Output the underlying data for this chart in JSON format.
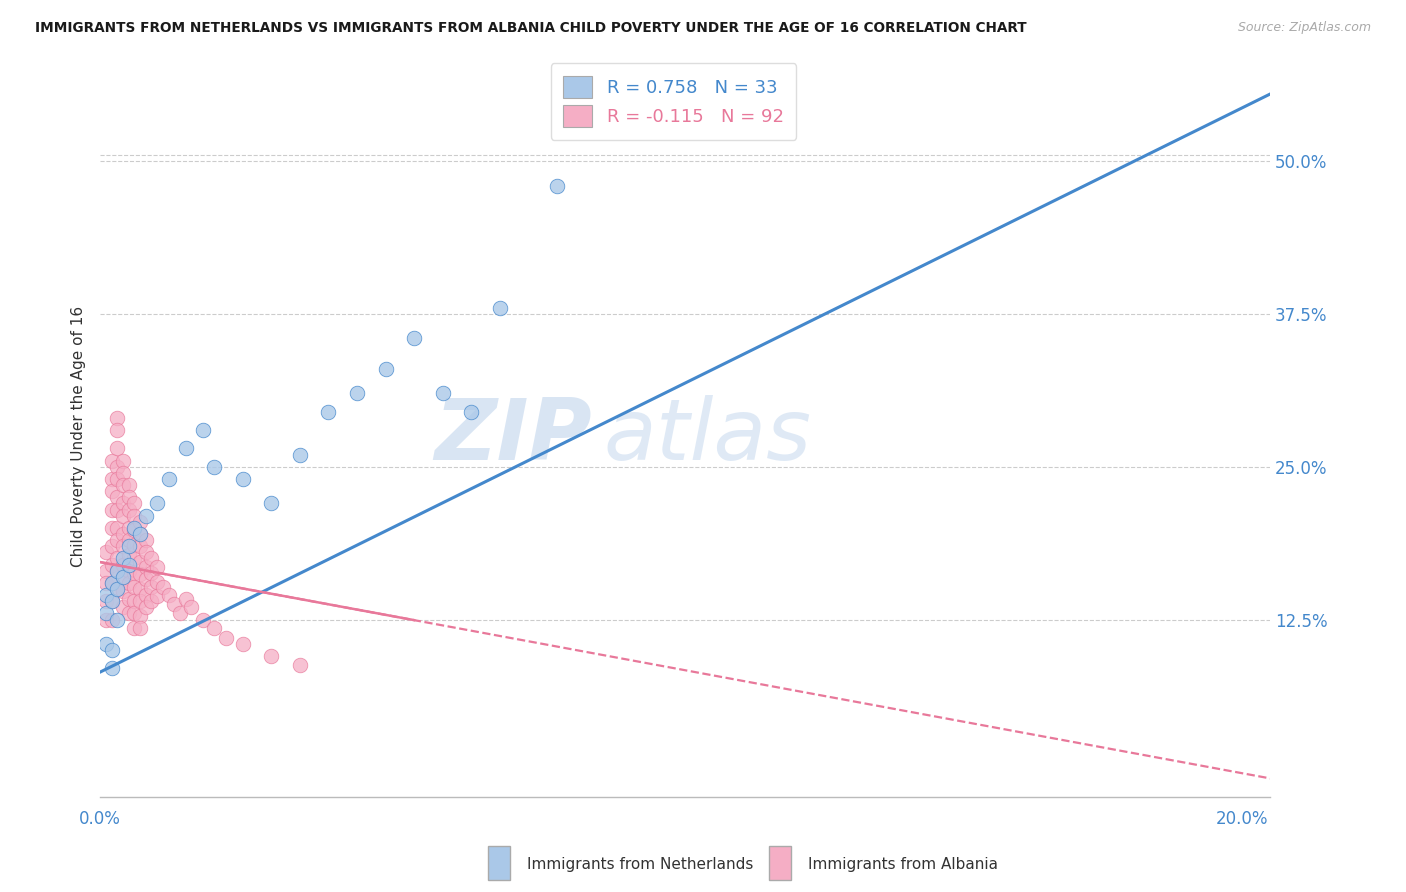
{
  "title": "IMMIGRANTS FROM NETHERLANDS VS IMMIGRANTS FROM ALBANIA CHILD POVERTY UNDER THE AGE OF 16 CORRELATION CHART",
  "source": "Source: ZipAtlas.com",
  "ylabel": "Child Poverty Under the Age of 16",
  "legend_label_1": "Immigrants from Netherlands",
  "legend_label_2": "Immigrants from Albania",
  "R1": 0.758,
  "N1": 33,
  "R2": -0.115,
  "N2": 92,
  "color1": "#aac8e8",
  "color2": "#f5aec5",
  "line_color1": "#4488cc",
  "line_color2": "#e8789a",
  "xlim": [
    0.0,
    0.205
  ],
  "ylim": [
    -0.02,
    0.57
  ],
  "xtick_positions": [
    0.0,
    0.05,
    0.1,
    0.15,
    0.2
  ],
  "xtick_labels": [
    "0.0%",
    "",
    "",
    "",
    "20.0%"
  ],
  "ytick_positions_right": [
    0.125,
    0.25,
    0.375,
    0.5
  ],
  "ytick_labels_right": [
    "12.5%",
    "25.0%",
    "37.5%",
    "50.0%"
  ],
  "watermark_zip": "ZIP",
  "watermark_atlas": "atlas",
  "netherlands_x": [
    0.001,
    0.001,
    0.001,
    0.002,
    0.002,
    0.002,
    0.002,
    0.003,
    0.003,
    0.003,
    0.004,
    0.004,
    0.005,
    0.005,
    0.006,
    0.007,
    0.008,
    0.01,
    0.012,
    0.015,
    0.018,
    0.02,
    0.025,
    0.03,
    0.035,
    0.04,
    0.045,
    0.05,
    0.055,
    0.06,
    0.065,
    0.07,
    0.08
  ],
  "netherlands_y": [
    0.145,
    0.13,
    0.105,
    0.155,
    0.14,
    0.1,
    0.085,
    0.165,
    0.15,
    0.125,
    0.175,
    0.16,
    0.185,
    0.17,
    0.2,
    0.195,
    0.21,
    0.22,
    0.24,
    0.265,
    0.28,
    0.25,
    0.24,
    0.22,
    0.26,
    0.295,
    0.31,
    0.33,
    0.355,
    0.31,
    0.295,
    0.38,
    0.48
  ],
  "albania_x": [
    0.001,
    0.001,
    0.001,
    0.001,
    0.001,
    0.002,
    0.002,
    0.002,
    0.002,
    0.002,
    0.002,
    0.002,
    0.002,
    0.002,
    0.002,
    0.003,
    0.003,
    0.003,
    0.003,
    0.003,
    0.003,
    0.003,
    0.003,
    0.003,
    0.003,
    0.003,
    0.003,
    0.004,
    0.004,
    0.004,
    0.004,
    0.004,
    0.004,
    0.004,
    0.004,
    0.004,
    0.004,
    0.004,
    0.005,
    0.005,
    0.005,
    0.005,
    0.005,
    0.005,
    0.005,
    0.005,
    0.005,
    0.005,
    0.006,
    0.006,
    0.006,
    0.006,
    0.006,
    0.006,
    0.006,
    0.006,
    0.006,
    0.006,
    0.007,
    0.007,
    0.007,
    0.007,
    0.007,
    0.007,
    0.007,
    0.007,
    0.007,
    0.008,
    0.008,
    0.008,
    0.008,
    0.008,
    0.008,
    0.009,
    0.009,
    0.009,
    0.009,
    0.01,
    0.01,
    0.01,
    0.011,
    0.012,
    0.013,
    0.014,
    0.015,
    0.016,
    0.018,
    0.02,
    0.022,
    0.025,
    0.03,
    0.035
  ],
  "albania_y": [
    0.18,
    0.165,
    0.155,
    0.14,
    0.125,
    0.255,
    0.24,
    0.23,
    0.215,
    0.2,
    0.185,
    0.17,
    0.155,
    0.14,
    0.125,
    0.29,
    0.28,
    0.265,
    0.25,
    0.24,
    0.225,
    0.215,
    0.2,
    0.19,
    0.175,
    0.165,
    0.15,
    0.255,
    0.245,
    0.235,
    0.22,
    0.21,
    0.195,
    0.185,
    0.17,
    0.16,
    0.148,
    0.135,
    0.235,
    0.225,
    0.215,
    0.2,
    0.19,
    0.178,
    0.165,
    0.155,
    0.142,
    0.13,
    0.22,
    0.21,
    0.198,
    0.186,
    0.175,
    0.163,
    0.152,
    0.14,
    0.13,
    0.118,
    0.205,
    0.195,
    0.185,
    0.172,
    0.162,
    0.15,
    0.14,
    0.128,
    0.118,
    0.19,
    0.18,
    0.168,
    0.158,
    0.145,
    0.135,
    0.175,
    0.163,
    0.152,
    0.14,
    0.168,
    0.156,
    0.144,
    0.152,
    0.145,
    0.138,
    0.13,
    0.142,
    0.135,
    0.125,
    0.118,
    0.11,
    0.105,
    0.095,
    0.088
  ],
  "blue_line_x0": 0.0,
  "blue_line_y0": 0.082,
  "blue_line_x1": 0.205,
  "blue_line_y1": 0.555,
  "pink_line_x0": 0.0,
  "pink_line_y0": 0.172,
  "pink_line_x1": 0.205,
  "pink_line_y1": -0.005
}
